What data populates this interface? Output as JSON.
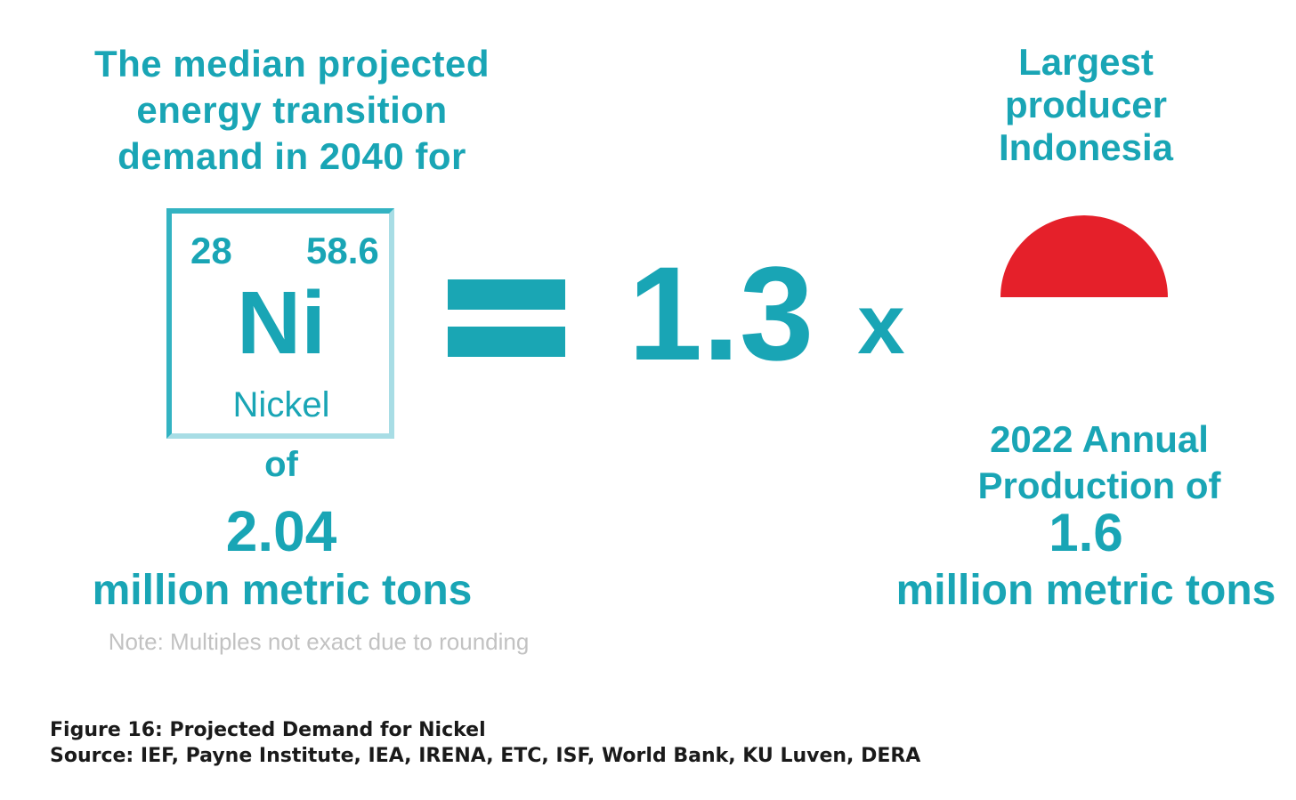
{
  "headline": {
    "lines": [
      "The median projected",
      "energy transition",
      "demand in 2040 for"
    ]
  },
  "element": {
    "atomic_number": "28",
    "atomic_mass": "58.6",
    "symbol": "Ni",
    "name": "Nickel"
  },
  "demand": {
    "of_label": "of",
    "value": "2.04",
    "unit": "million metric tons"
  },
  "note": "Note:  Multiples  not exact  due to  rounding",
  "comparison": {
    "multiple": "1.3",
    "times_sign": "x"
  },
  "producer": {
    "title_lines": [
      "Largest",
      "producer",
      "Indonesia"
    ],
    "flag_icon": "indonesia-flag-half-circle-icon",
    "flag_color": "#e5202a",
    "production_label_lines": [
      "2022 Annual",
      "Production of"
    ],
    "production_value": "1.6",
    "production_unit": "million metric tons"
  },
  "caption": {
    "figure": "Figure 16: Projected Demand for Nickel",
    "source": "Source: IEF, Payne Institute, IEA, IRENA, ETC, ISF, World Bank, KU Luven, DERA"
  },
  "colors": {
    "accent": "#19a5b5",
    "note": "#c2c2c2",
    "caption": "#1a1a1a"
  }
}
